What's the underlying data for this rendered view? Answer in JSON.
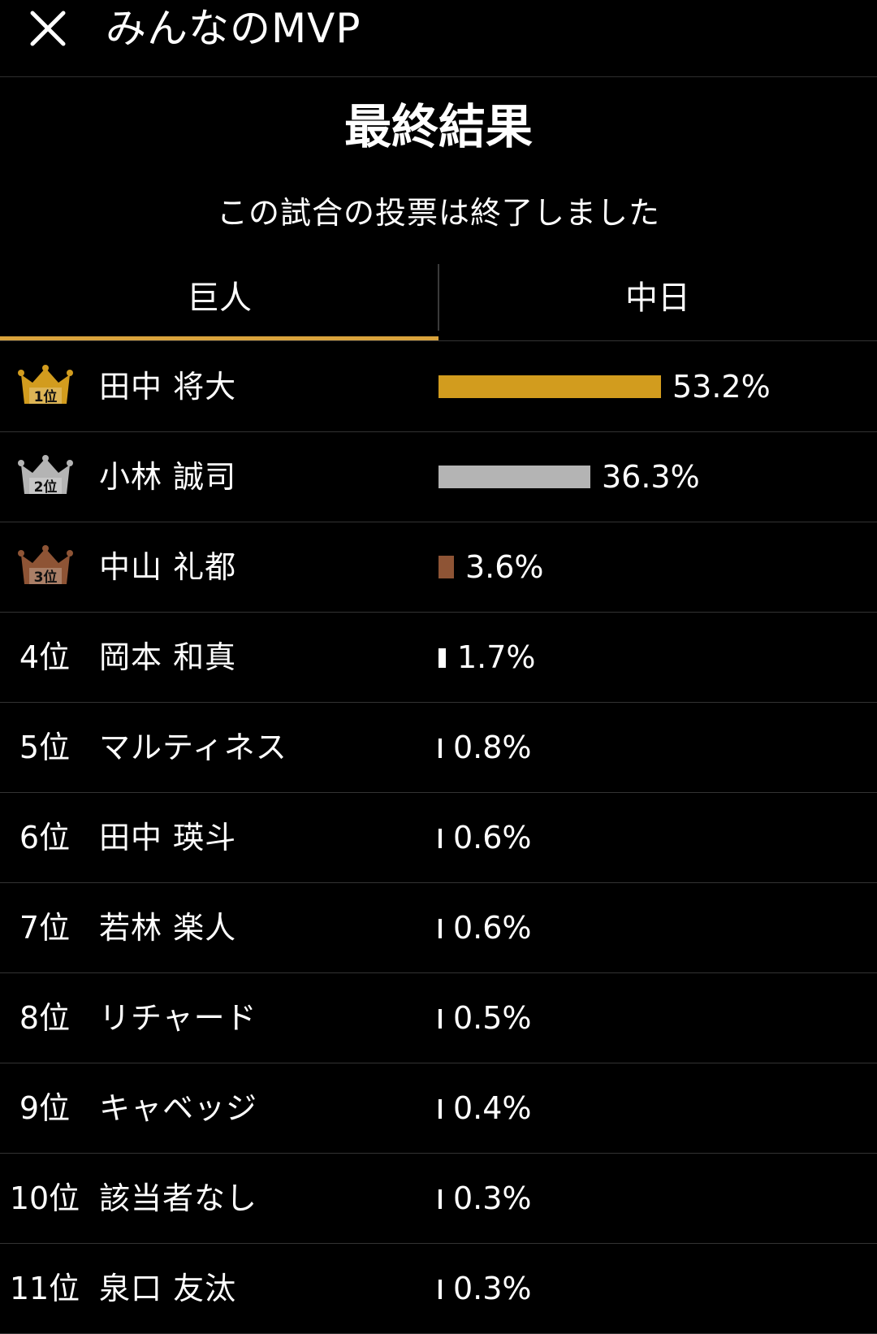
{
  "header": {
    "title": "みんなのMVP",
    "close_icon": "close-icon"
  },
  "result": {
    "title": "最終結果",
    "subtitle": "この試合の投票は終了しました"
  },
  "tabs": [
    {
      "label": "巨人",
      "active": true
    },
    {
      "label": "中日",
      "active": false
    }
  ],
  "colors": {
    "accent": "#d9a33c",
    "gold": "#d29c1e",
    "silver": "#b4b4b4",
    "bronze": "#8e5435",
    "bar_default": "#ffffff"
  },
  "max_percent": 53.2,
  "players": [
    {
      "rank": "1位",
      "crown": "gold",
      "crown_label": "1位",
      "name": "田中 将大",
      "percent": 53.2,
      "label": "53.2%"
    },
    {
      "rank": "2位",
      "crown": "silver",
      "crown_label": "2位",
      "name": "小林 誠司",
      "percent": 36.3,
      "label": "36.3%"
    },
    {
      "rank": "3位",
      "crown": "bronze",
      "crown_label": "3位",
      "name": "中山 礼都",
      "percent": 3.6,
      "label": "3.6%"
    },
    {
      "rank": "4位",
      "crown": null,
      "name": "岡本 和真",
      "percent": 1.7,
      "label": "1.7%"
    },
    {
      "rank": "5位",
      "crown": null,
      "name": "マルティネス",
      "percent": 0.8,
      "label": "0.8%"
    },
    {
      "rank": "6位",
      "crown": null,
      "name": "田中 瑛斗",
      "percent": 0.6,
      "label": "0.6%"
    },
    {
      "rank": "7位",
      "crown": null,
      "name": "若林 楽人",
      "percent": 0.6,
      "label": "0.6%"
    },
    {
      "rank": "8位",
      "crown": null,
      "name": "リチャード",
      "percent": 0.5,
      "label": "0.5%"
    },
    {
      "rank": "9位",
      "crown": null,
      "name": "キャベッジ",
      "percent": 0.4,
      "label": "0.4%"
    },
    {
      "rank": "10位",
      "crown": null,
      "name": "該当者なし",
      "percent": 0.3,
      "label": "0.3%"
    },
    {
      "rank": "11位",
      "crown": null,
      "name": "泉口 友汰",
      "percent": 0.3,
      "label": "0.3%"
    }
  ]
}
